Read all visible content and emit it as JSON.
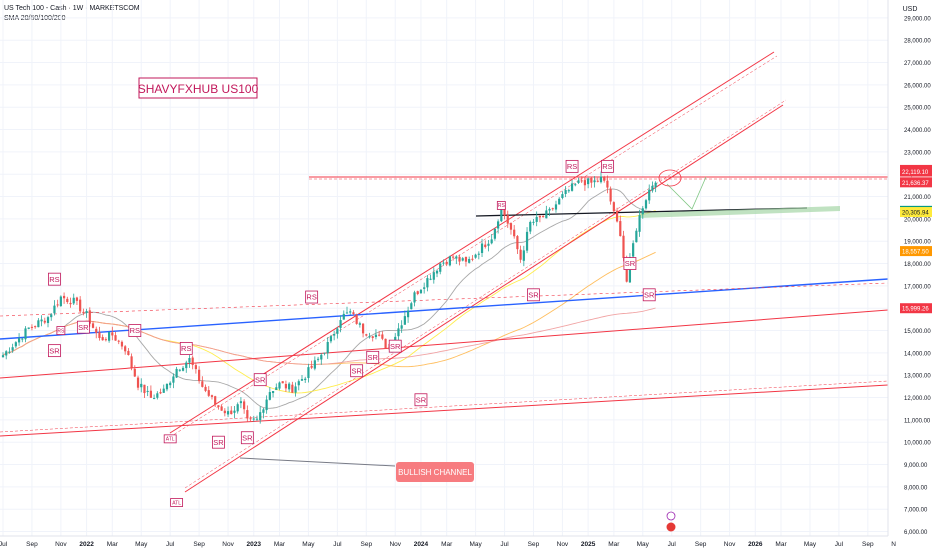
{
  "header": {
    "title": "US Tech 100 - Cash · 1W · MARKETSCOM",
    "indicators": "SMA 20/50/100/200"
  },
  "currency": "USD",
  "colors": {
    "up": "#26a69a",
    "down": "#ef5350",
    "trend_red": "#f23645",
    "trend_blue": "#2962ff",
    "support_green": "#a5d6a7"
  },
  "chart_data": {
    "type": "candlestick",
    "timeframe": "1W",
    "y_axis": {
      "ticks": [
        "6,000.00",
        "7,000.00",
        "8,000.00",
        "9,000.00",
        "10,000.00",
        "11,000.00",
        "12,000.00",
        "13,000.00",
        "14,000.00",
        "15,000.00",
        "16,000.00",
        "17,000.00",
        "18,000.00",
        "19,000.00",
        "20,000.00",
        "21,000.00",
        "22,000.00",
        "23,000.00",
        "24,000.00",
        "25,000.00",
        "26,000.00",
        "27,000.00",
        "28,000.00",
        "29,000.00"
      ],
      "ylim": [
        5800,
        29800
      ]
    },
    "x_axis": {
      "ticks": [
        {
          "label": "Jul",
          "i": 0
        },
        {
          "label": "Sep",
          "i": 9
        },
        {
          "label": "Nov",
          "i": 18
        },
        {
          "label": "2022",
          "i": 26
        },
        {
          "label": "Mar",
          "i": 34
        },
        {
          "label": "May",
          "i": 43
        },
        {
          "label": "Jul",
          "i": 52
        },
        {
          "label": "Sep",
          "i": 61
        },
        {
          "label": "Nov",
          "i": 70
        },
        {
          "label": "2023",
          "i": 78
        },
        {
          "label": "Mar",
          "i": 86
        },
        {
          "label": "May",
          "i": 95
        },
        {
          "label": "Jul",
          "i": 104
        },
        {
          "label": "Sep",
          "i": 113
        },
        {
          "label": "Nov",
          "i": 122
        },
        {
          "label": "2024",
          "i": 130
        },
        {
          "label": "Mar",
          "i": 138
        },
        {
          "label": "May",
          "i": 147
        },
        {
          "label": "Jul",
          "i": 156
        },
        {
          "label": "Sep",
          "i": 165
        },
        {
          "label": "Nov",
          "i": 174
        },
        {
          "label": "2025",
          "i": 182
        },
        {
          "label": "Mar",
          "i": 190
        },
        {
          "label": "May",
          "i": 199
        },
        {
          "label": "Jul",
          "i": 208
        },
        {
          "label": "Sep",
          "i": 217
        },
        {
          "label": "Nov",
          "i": 226
        },
        {
          "label": "2026",
          "i": 234
        },
        {
          "label": "Mar",
          "i": 242
        },
        {
          "label": "May",
          "i": 251
        },
        {
          "label": "Jul",
          "i": 260
        },
        {
          "label": "Sep",
          "i": 269
        },
        {
          "label": "N",
          "i": 277
        }
      ]
    },
    "price_anchors": [
      [
        0,
        13900
      ],
      [
        8,
        15100
      ],
      [
        14,
        15600
      ],
      [
        18,
        16500
      ],
      [
        22,
        16300
      ],
      [
        26,
        15700
      ],
      [
        30,
        14600
      ],
      [
        34,
        14800
      ],
      [
        38,
        14200
      ],
      [
        42,
        12600
      ],
      [
        46,
        12000
      ],
      [
        50,
        12300
      ],
      [
        54,
        13300
      ],
      [
        58,
        13700
      ],
      [
        62,
        12500
      ],
      [
        66,
        11700
      ],
      [
        70,
        11300
      ],
      [
        74,
        11700
      ],
      [
        76,
        10900
      ],
      [
        79,
        11000
      ],
      [
        83,
        12300
      ],
      [
        86,
        12600
      ],
      [
        90,
        12400
      ],
      [
        94,
        13000
      ],
      [
        98,
        13700
      ],
      [
        102,
        14600
      ],
      [
        105,
        15600
      ],
      [
        108,
        15800
      ],
      [
        112,
        15000
      ],
      [
        116,
        14800
      ],
      [
        120,
        14200
      ],
      [
        124,
        15400
      ],
      [
        128,
        16600
      ],
      [
        132,
        17300
      ],
      [
        136,
        18000
      ],
      [
        140,
        18300
      ],
      [
        144,
        18000
      ],
      [
        148,
        18600
      ],
      [
        152,
        19200
      ],
      [
        155,
        20500
      ],
      [
        158,
        19500
      ],
      [
        161,
        18200
      ],
      [
        164,
        19800
      ],
      [
        167,
        20000
      ],
      [
        170,
        20300
      ],
      [
        174,
        21000
      ],
      [
        177,
        21400
      ],
      [
        180,
        21700
      ],
      [
        183,
        21600
      ],
      [
        186,
        21800
      ],
      [
        188,
        21400
      ],
      [
        190,
        20200
      ],
      [
        192,
        19400
      ],
      [
        194,
        17200
      ],
      [
        195,
        18100
      ],
      [
        197,
        19600
      ],
      [
        199,
        20600
      ],
      [
        201,
        21300
      ],
      [
        203,
        21800
      ]
    ],
    "candle_count": 204,
    "price_labels": [
      {
        "value": 22191.35,
        "text": "22,191.35",
        "bg": "#f23645",
        "fg": "#ffffff"
      },
      {
        "value": 22119.1,
        "text": "22,119.10",
        "bg": "#f23645",
        "fg": "#ffffff"
      },
      {
        "value": 21636.37,
        "text": "21,636.37",
        "bg": "#f23645",
        "fg": "#ffffff"
      },
      {
        "value": 20359.01,
        "text": "20,359.01",
        "bg": "#089981",
        "fg": "#ffffff"
      },
      {
        "value": 20305.94,
        "text": "20,305.94",
        "bg": "#ffeb3b",
        "fg": "#131722"
      },
      {
        "value": 18557.5,
        "text": "18,557.50",
        "bg": "#ff9800",
        "fg": "#ffffff"
      },
      {
        "value": 15999.26,
        "text": "15,999.26",
        "bg": "#f23645",
        "fg": "#ffffff"
      }
    ],
    "annotations": {
      "title_box": "SHAVYFXHUB US100",
      "channel_label": "BULLISH CHANNEL",
      "rs": [
        {
          "i": 16,
          "p": 17300
        },
        {
          "i": 41,
          "p": 15000
        },
        {
          "i": 57,
          "p": 14200
        },
        {
          "i": 96,
          "p": 16500
        },
        {
          "i": 177,
          "p": 22350
        },
        {
          "i": 188,
          "p": 22350
        }
      ],
      "sr": [
        {
          "i": 16,
          "p": 14100
        },
        {
          "i": 25,
          "p": 15150
        },
        {
          "i": 67,
          "p": 10000
        },
        {
          "i": 76,
          "p": 10200
        },
        {
          "i": 80,
          "p": 12800
        },
        {
          "i": 110,
          "p": 13200
        },
        {
          "i": 115,
          "p": 13800
        },
        {
          "i": 122,
          "p": 14300
        },
        {
          "i": 130,
          "p": 11900
        },
        {
          "i": 165,
          "p": 16600
        },
        {
          "i": 195,
          "p": 18000
        },
        {
          "i": 201,
          "p": 16600
        }
      ],
      "small_rs": [
        {
          "i": 18,
          "p": 15000
        },
        {
          "i": 155,
          "p": 20600
        }
      ],
      "atl": [
        {
          "i": 52,
          "p": 10150
        },
        {
          "i": 54,
          "p": 7300
        }
      ]
    }
  }
}
